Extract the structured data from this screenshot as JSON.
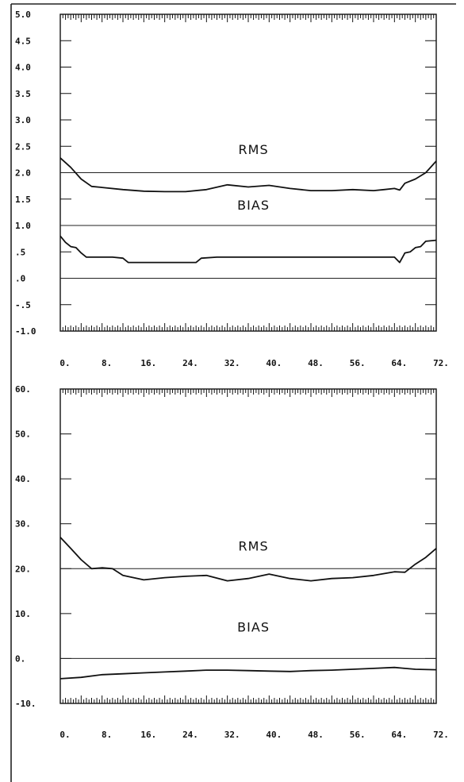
{
  "chart_data": [
    {
      "type": "line",
      "title": "",
      "xlabel": "",
      "ylabel": "",
      "xlim": [
        0,
        72
      ],
      "ylim": [
        -1.0,
        5.0
      ],
      "x_tick_labels": [
        "0.",
        "8.",
        "16.",
        "24.",
        "32.",
        "40.",
        "48.",
        "56.",
        "64.",
        "72."
      ],
      "x_tick_values": [
        0,
        8,
        16,
        24,
        32,
        40,
        48,
        56,
        64,
        72
      ],
      "y_tick_labels": [
        "5.0",
        "4.5",
        "4.0",
        "3.5",
        "3.0",
        "2.5",
        "2.0",
        "1.5",
        "1.0",
        ".5",
        ".0",
        "-.5",
        "-1.0"
      ],
      "y_tick_values": [
        5.0,
        4.5,
        4.0,
        3.5,
        3.0,
        2.5,
        2.0,
        1.5,
        1.0,
        0.5,
        0.0,
        -0.5,
        -1.0
      ],
      "reference_lines": [
        2.0,
        1.0,
        0.0
      ],
      "annotations": [
        {
          "text": "RMS",
          "x": 37,
          "y": 2.35
        },
        {
          "text": "BIAS",
          "x": 37,
          "y": 1.3
        }
      ],
      "grid": false,
      "series": [
        {
          "x": [
            0,
            2,
            4,
            6,
            8,
            12,
            16,
            20,
            24,
            28,
            32,
            36,
            40,
            44,
            48,
            52,
            56,
            60,
            62,
            64,
            65,
            66,
            68,
            70,
            72
          ],
          "y": [
            2.28,
            2.1,
            1.88,
            1.74,
            1.72,
            1.68,
            1.65,
            1.64,
            1.64,
            1.68,
            1.77,
            1.73,
            1.76,
            1.7,
            1.66,
            1.66,
            1.68,
            1.66,
            1.68,
            1.7,
            1.67,
            1.8,
            1.88,
            2.0,
            2.22
          ]
        },
        {
          "x": [
            0,
            1,
            2,
            3,
            4,
            5,
            6,
            10,
            12,
            13,
            16,
            20,
            24,
            26,
            27,
            30,
            36,
            40,
            48,
            56,
            62,
            64,
            65,
            66,
            67,
            68,
            69,
            70,
            72
          ],
          "y": [
            0.8,
            0.68,
            0.6,
            0.58,
            0.48,
            0.4,
            0.4,
            0.4,
            0.38,
            0.3,
            0.3,
            0.3,
            0.3,
            0.3,
            0.38,
            0.4,
            0.4,
            0.4,
            0.4,
            0.4,
            0.4,
            0.4,
            0.3,
            0.48,
            0.5,
            0.58,
            0.6,
            0.7,
            0.72
          ]
        }
      ]
    },
    {
      "type": "line",
      "title": "",
      "xlabel": "",
      "ylabel": "",
      "xlim": [
        0,
        72
      ],
      "ylim": [
        -10,
        60
      ],
      "x_tick_labels": [
        "0.",
        "8.",
        "16.",
        "24.",
        "32.",
        "40.",
        "48.",
        "56.",
        "64.",
        "72."
      ],
      "x_tick_values": [
        0,
        8,
        16,
        24,
        32,
        40,
        48,
        56,
        64,
        72
      ],
      "y_tick_labels": [
        "60.",
        "50.",
        "40.",
        "30.",
        "20.",
        "10.",
        "0.",
        "-10."
      ],
      "y_tick_values": [
        60,
        50,
        40,
        30,
        20,
        10,
        0,
        -10
      ],
      "reference_lines": [
        20,
        0
      ],
      "annotations": [
        {
          "text": "RMS",
          "x": 37,
          "y": 24
        },
        {
          "text": "BIAS",
          "x": 37,
          "y": 6
        }
      ],
      "grid": false,
      "series": [
        {
          "x": [
            0,
            2,
            4,
            6,
            8,
            10,
            12,
            16,
            20,
            24,
            28,
            32,
            36,
            40,
            44,
            48,
            52,
            56,
            60,
            64,
            66,
            68,
            70,
            72
          ],
          "y": [
            27,
            24.5,
            22,
            20,
            20.2,
            20,
            18.5,
            17.5,
            18,
            18.3,
            18.5,
            17.3,
            17.8,
            18.8,
            17.8,
            17.3,
            17.8,
            18,
            18.5,
            19.3,
            19.2,
            21,
            22.5,
            24.5
          ]
        },
        {
          "x": [
            0,
            4,
            8,
            12,
            16,
            20,
            24,
            28,
            32,
            36,
            40,
            44,
            48,
            52,
            56,
            60,
            64,
            66,
            68,
            72
          ],
          "y": [
            -4.5,
            -4.2,
            -3.6,
            -3.4,
            -3.2,
            -3.0,
            -2.8,
            -2.6,
            -2.6,
            -2.7,
            -2.8,
            -2.9,
            -2.7,
            -2.6,
            -2.4,
            -2.2,
            -2.0,
            -2.2,
            -2.4,
            -2.5
          ]
        }
      ]
    }
  ]
}
